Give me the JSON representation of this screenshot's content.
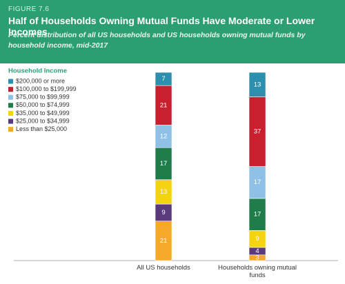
{
  "chart_data": {
    "type": "stacked_bar",
    "figure_label": "FIGURE 7.6",
    "title": "Half of Households Owning Mutual Funds Have Moderate or Lower Incomes",
    "subtitle": "Percent distribution of all US households and US households owning mutual funds by household income, mid-2017",
    "legend_title": "Household Income",
    "categories": [
      "All US households",
      "Households owning mutual funds"
    ],
    "series": [
      {
        "name": "$200,000 or more",
        "color": "#2c8fae",
        "values": [
          7,
          13
        ]
      },
      {
        "name": "$100,000 to $199,999",
        "color": "#c8202f",
        "values": [
          21,
          37
        ]
      },
      {
        "name": "$75,000 to $99,999",
        "color": "#8fc1e6",
        "values": [
          12,
          17
        ]
      },
      {
        "name": "$50,000 to $74,999",
        "color": "#1f7d4c",
        "values": [
          17,
          17
        ]
      },
      {
        "name": "$35,000 to $49,999",
        "color": "#f4d411",
        "values": [
          13,
          9
        ]
      },
      {
        "name": "$25,000 to $34,999",
        "color": "#5a3a7c",
        "values": [
          9,
          4
        ]
      },
      {
        "name": "Less than $25,000",
        "color": "#f5a82a",
        "values": [
          21,
          3
        ]
      }
    ]
  }
}
